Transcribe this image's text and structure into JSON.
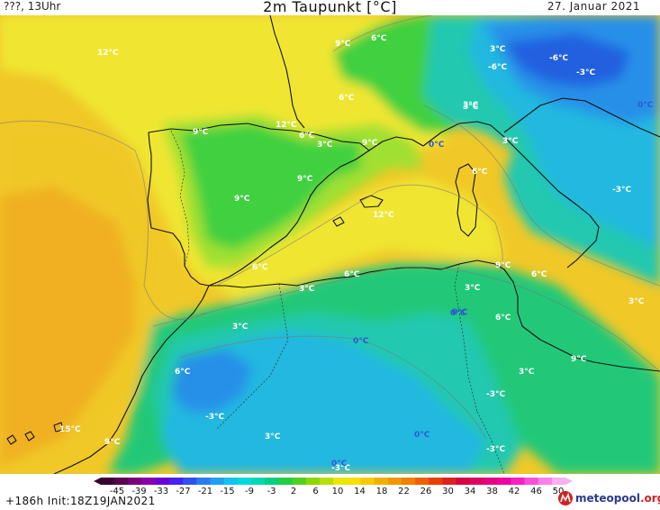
{
  "header": {
    "run_label": "???, 13Uhr",
    "title": "2m Taupunkt [°C]",
    "date": "27. Januar 2021"
  },
  "footer": {
    "forecast_info": "+186h  Init:18Z19JAN2021",
    "logo_main": "meteopool",
    "logo_tld": ".org"
  },
  "colorbar": {
    "tick_labels": [
      "-45",
      "-39",
      "-33",
      "-27",
      "-21",
      "-15",
      "-9",
      "-3",
      "2",
      "6",
      "10",
      "14",
      "18",
      "22",
      "26",
      "30",
      "34",
      "38",
      "42",
      "46",
      "50"
    ],
    "colors": [
      "#3a0032",
      "#5a004e",
      "#7a0080",
      "#8a00b0",
      "#6a00d8",
      "#4a20f0",
      "#3050f0",
      "#2a7af0",
      "#20a0f0",
      "#10c4f0",
      "#00d8e0",
      "#00d8b0",
      "#00d080",
      "#20d040",
      "#50d020",
      "#8ad800",
      "#b8e000",
      "#e8e800",
      "#f8e000",
      "#f8c800",
      "#f0b000",
      "#f09800",
      "#f08000",
      "#f06000",
      "#e84000",
      "#e02020",
      "#d80040",
      "#e00060",
      "#e80080",
      "#f000a0",
      "#f820c0",
      "#f850d8",
      "#f880e8",
      "#f8b0f0"
    ],
    "colors_note": "low-to-high"
  },
  "map": {
    "field_colors": {
      "ocean_warm": "#f0b020",
      "ocean_mid": "#f0c828",
      "yellow": "#f0e630",
      "lime": "#a0e030",
      "green": "#40d040",
      "green_teal": "#20c878",
      "teal": "#20c8b0",
      "cyan": "#20b8e0",
      "blue": "#2890e8",
      "deep_blue": "#2060e0"
    },
    "labels": [
      {
        "text": "12°C",
        "color": "#ffffff"
      },
      {
        "text": "9°C",
        "color": "#ffffff"
      },
      {
        "text": "6°C",
        "color": "#ffffff"
      },
      {
        "text": "6°C",
        "color": "#ffffff"
      },
      {
        "text": "12°C",
        "color": "#ffffff"
      },
      {
        "text": "9°C",
        "color": "#ffffff"
      },
      {
        "text": "6°C",
        "color": "#ffffff"
      },
      {
        "text": "3°C",
        "color": "#ffffff"
      },
      {
        "text": "9°C",
        "color": "#ffffff"
      },
      {
        "text": "0°C",
        "color": "#2a5ad8"
      },
      {
        "text": "9°C",
        "color": "#ffffff"
      },
      {
        "text": "9°C",
        "color": "#ffffff"
      },
      {
        "text": "12°C",
        "color": "#ffffff"
      },
      {
        "text": "6°C",
        "color": "#ffffff"
      },
      {
        "text": "3°C",
        "color": "#ffffff"
      },
      {
        "text": "6°C",
        "color": "#ffffff"
      },
      {
        "text": "3°C",
        "color": "#ffffff"
      },
      {
        "text": "3°C",
        "color": "#ffffff"
      },
      {
        "text": "3°C",
        "color": "#ffffff"
      },
      {
        "text": "9°C",
        "color": "#ffffff"
      },
      {
        "text": "6°C",
        "color": "#ffffff"
      },
      {
        "text": "0°C",
        "color": "#2a5ad8"
      },
      {
        "text": "3°C",
        "color": "#ffffff"
      },
      {
        "text": "6°C",
        "color": "#ffffff"
      },
      {
        "text": "3°C",
        "color": "#ffffff"
      },
      {
        "text": "0°C",
        "color": "#2a5ad8"
      },
      {
        "text": "6°C",
        "color": "#ffffff"
      },
      {
        "text": "-3°C",
        "color": "#ffffff"
      },
      {
        "text": "9°C",
        "color": "#ffffff"
      },
      {
        "text": "3°C",
        "color": "#ffffff"
      },
      {
        "text": "3°C",
        "color": "#ffffff"
      },
      {
        "text": "-3°C",
        "color": "#ffffff"
      },
      {
        "text": "15°C",
        "color": "#ffffff"
      },
      {
        "text": "9°C",
        "color": "#ffffff"
      },
      {
        "text": "3°C",
        "color": "#ffffff"
      },
      {
        "text": "0°C",
        "color": "#2a5ad8"
      },
      {
        "text": "-3°C",
        "color": "#ffffff"
      },
      {
        "text": "0°C",
        "color": "#2a5ad8"
      },
      {
        "text": "-3°C",
        "color": "#ffffff"
      },
      {
        "text": "-6°C",
        "color": "#ffffff"
      },
      {
        "text": "-6°C",
        "color": "#ffffff"
      },
      {
        "text": "-3°C",
        "color": "#ffffff"
      },
      {
        "text": "0°C",
        "color": "#2a5ad8"
      },
      {
        "text": "3°C",
        "color": "#ffffff"
      },
      {
        "text": "-3°C",
        "color": "#ffffff"
      },
      {
        "text": "3°C",
        "color": "#ffffff"
      },
      {
        "text": "0°C",
        "color": "#2a5ad8"
      },
      {
        "text": "6°C",
        "color": "#ffffff"
      }
    ]
  }
}
